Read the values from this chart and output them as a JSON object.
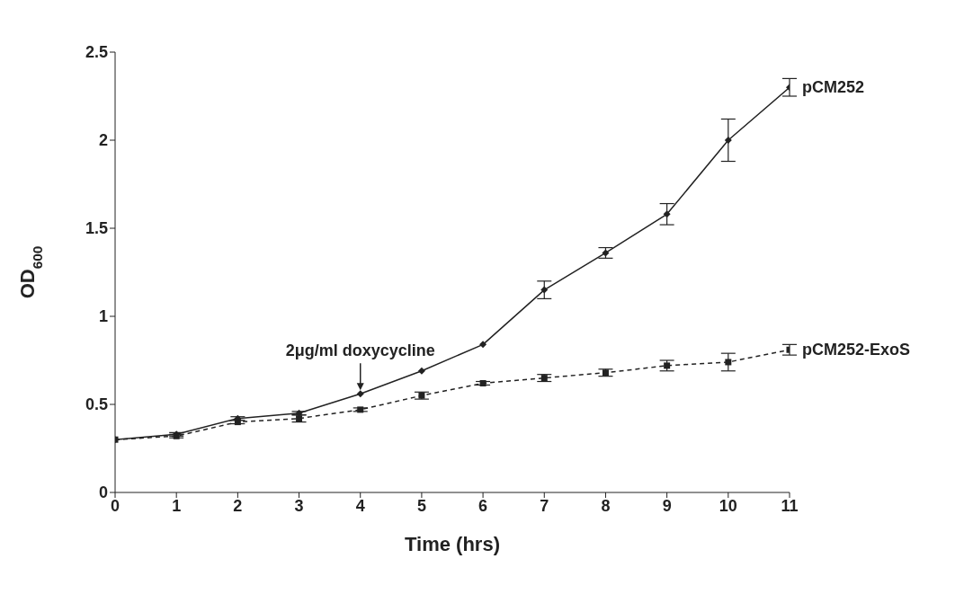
{
  "chart_data": {
    "type": "line",
    "xlabel": "Time (hrs)",
    "ylabel": "OD$_{600}$",
    "x": [
      0,
      1,
      2,
      3,
      4,
      5,
      6,
      7,
      8,
      9,
      10,
      11
    ],
    "series": [
      {
        "name": "pCM252",
        "color": "#222222",
        "marker": "diamond",
        "line_style": "solid",
        "values": [
          0.3,
          0.33,
          0.42,
          0.45,
          0.56,
          0.69,
          0.84,
          1.15,
          1.36,
          1.58,
          2.0,
          2.3
        ],
        "errors": [
          null,
          0.01,
          0.01,
          0.01,
          null,
          null,
          null,
          0.05,
          0.03,
          0.06,
          0.12,
          0.05
        ]
      },
      {
        "name": "pCM252-ExoS",
        "color": "#222222",
        "marker": "square",
        "line_style": "dashed",
        "values": [
          0.3,
          0.32,
          0.4,
          0.42,
          0.47,
          0.55,
          0.62,
          0.65,
          0.68,
          0.72,
          0.74,
          0.81
        ],
        "errors": [
          null,
          0.01,
          0.01,
          0.02,
          0.01,
          0.02,
          0.01,
          0.02,
          0.02,
          0.03,
          0.05,
          0.03
        ]
      }
    ],
    "xlim": [
      0,
      11
    ],
    "xticks": [
      0,
      1,
      2,
      3,
      4,
      5,
      6,
      7,
      8,
      9,
      10,
      11
    ],
    "ylim": [
      0,
      2.5
    ],
    "yticks": [
      0,
      0.5,
      1,
      1.5,
      2,
      2.5
    ],
    "grid": false,
    "legend": false,
    "annotations": [
      {
        "text": "2μg/ml doxycycline",
        "x": 4,
        "y": 0.56
      }
    ]
  }
}
